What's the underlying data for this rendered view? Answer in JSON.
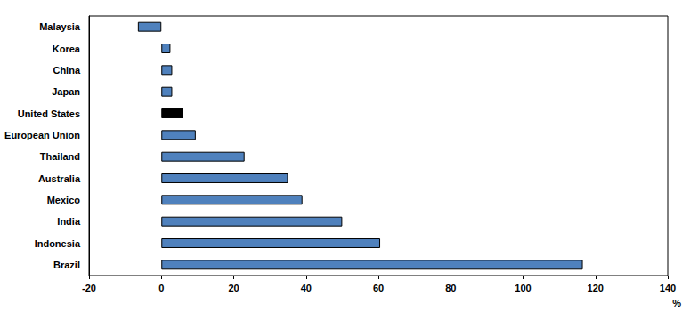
{
  "chart_data": {
    "type": "bar",
    "orientation": "horizontal",
    "categories": [
      "Malaysia",
      "Korea",
      "China",
      "Japan",
      "United States",
      "European Union",
      "Thailand",
      "Australia",
      "Mexico",
      "India",
      "Indonesia",
      "Brazil"
    ],
    "values": [
      -6.5,
      2.5,
      3,
      3,
      6,
      9.5,
      23,
      35,
      39,
      50,
      60.5,
      116.5
    ],
    "colors": [
      "#4f81bd",
      "#4f81bd",
      "#4f81bd",
      "#4f81bd",
      "#000000",
      "#4f81bd",
      "#4f81bd",
      "#4f81bd",
      "#4f81bd",
      "#4f81bd",
      "#4f81bd",
      "#4f81bd"
    ],
    "xlim": [
      -20,
      140
    ],
    "xticks": [
      -20,
      0,
      20,
      40,
      60,
      80,
      100,
      120,
      140
    ],
    "xlabel": "%",
    "grid": false
  }
}
